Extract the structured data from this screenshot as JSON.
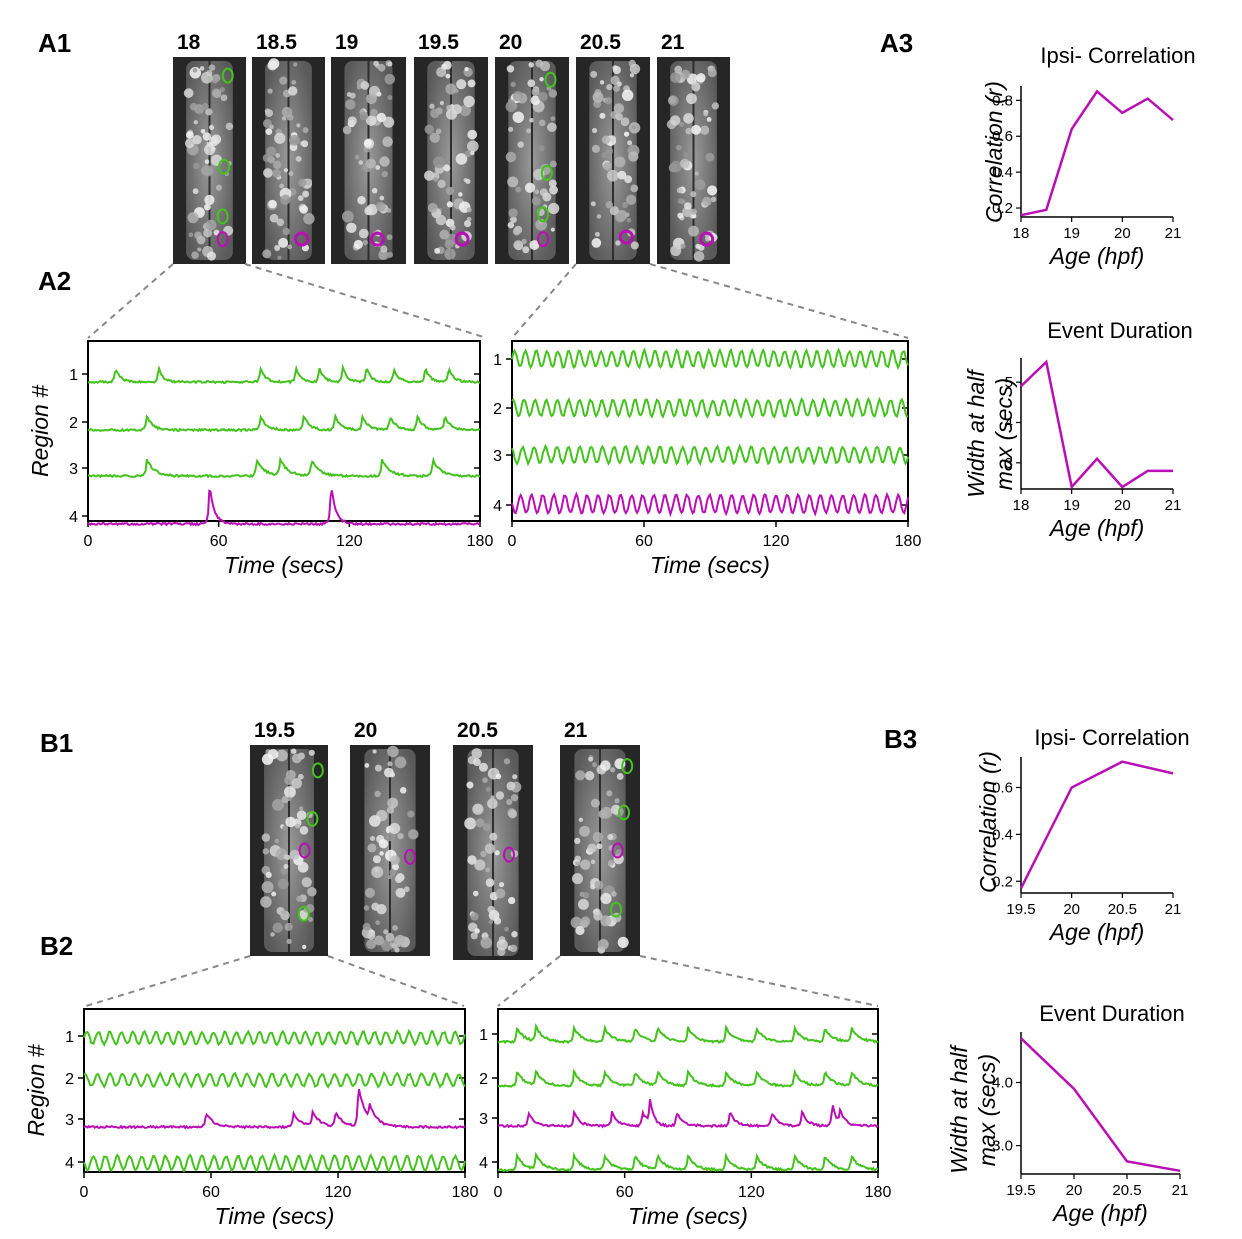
{
  "colors": {
    "active": "#44c21e",
    "inactive": "#b90fb5",
    "line": "#b90fb5",
    "frame": "#000000"
  },
  "panelA": {
    "labels": [
      "A1",
      "A2",
      "A3"
    ],
    "ages": [
      "18",
      "18.5",
      "19",
      "19.5",
      "20",
      "20.5",
      "21"
    ],
    "trace_left": {
      "ylabel": "Region #",
      "xlabel": "Time (secs)",
      "xticks": [
        "0",
        "60",
        "120",
        "180"
      ],
      "yticks": [
        "1",
        "2",
        "3",
        "4"
      ],
      "region_colors": [
        "green",
        "green",
        "green",
        "magenta"
      ]
    },
    "trace_right": {
      "xlabel": "Time (secs)",
      "xticks": [
        "0",
        "60",
        "120",
        "180"
      ],
      "yticks": [
        "1",
        "2",
        "3",
        "4"
      ],
      "region_colors": [
        "green",
        "green",
        "green",
        "magenta"
      ]
    }
  },
  "panelB": {
    "labels": [
      "B1",
      "B2",
      "B3"
    ],
    "ages": [
      "19.5",
      "20",
      "20.5",
      "21"
    ],
    "trace_left": {
      "ylabel": "Region #",
      "xlabel": "Time (secs)",
      "xticks": [
        "0",
        "60",
        "120",
        "180"
      ],
      "yticks": [
        "1",
        "2",
        "3",
        "4"
      ],
      "region_colors": [
        "green",
        "green",
        "magenta",
        "green"
      ]
    },
    "trace_right": {
      "xlabel": "Time (secs)",
      "xticks": [
        "0",
        "60",
        "120",
        "180"
      ],
      "yticks": [
        "1",
        "2",
        "3",
        "4"
      ],
      "region_colors": [
        "green",
        "green",
        "magenta",
        "green"
      ]
    }
  },
  "chart_data": [
    {
      "type": "line",
      "title": "Ipsi- Correlation",
      "xlabel": "Age (hpf)",
      "ylabel": "Correlation (r)",
      "x": [
        18,
        18.5,
        19,
        19.5,
        20,
        20.5,
        21
      ],
      "y": [
        0.16,
        0.19,
        0.64,
        0.85,
        0.73,
        0.81,
        0.69
      ],
      "xlim": [
        18,
        21
      ],
      "ylim": [
        0.15,
        0.88
      ],
      "xticks": [
        "18",
        "19",
        "20",
        "21"
      ],
      "yticks": [
        "0.2",
        "0.4",
        "0.6",
        "0.8"
      ]
    },
    {
      "type": "line",
      "title": "Event Duration",
      "xlabel": "Age (hpf)",
      "ylabel": "Width at half max (secs)",
      "x": [
        18,
        18.5,
        19,
        19.5,
        20,
        20.5,
        21
      ],
      "y": [
        4.9,
        5.5,
        2.4,
        3.1,
        2.4,
        2.8,
        2.8
      ],
      "xlim": [
        18,
        21
      ],
      "ylim": [
        2.35,
        5.6
      ],
      "xticks": [
        "18",
        "19",
        "20",
        "21"
      ],
      "yticks": [
        "3",
        "4",
        "5"
      ]
    },
    {
      "type": "line",
      "title": "Ipsi- Correlation",
      "xlabel": "Age (hpf)",
      "ylabel": "Correlation (r)",
      "x": [
        19.5,
        20,
        20.5,
        21
      ],
      "y": [
        0.17,
        0.6,
        0.71,
        0.66
      ],
      "xlim": [
        19.5,
        21
      ],
      "ylim": [
        0.15,
        0.73
      ],
      "xticks": [
        "19.5",
        "20",
        "20.5",
        "21"
      ],
      "yticks": [
        "0.2",
        "0.4",
        "0.6"
      ]
    },
    {
      "type": "line",
      "title": "Event Duration",
      "xlabel": "Age (hpf)",
      "ylabel": "Width at half max (secs)",
      "x": [
        19.5,
        20,
        20.5,
        21
      ],
      "y": [
        4.7,
        3.9,
        2.75,
        2.6
      ],
      "xlim": [
        19.5,
        21
      ],
      "ylim": [
        2.55,
        4.8
      ],
      "xticks": [
        "19.5",
        "20",
        "20.5",
        "21"
      ],
      "yticks": [
        "3.0",
        "4.0"
      ]
    }
  ]
}
